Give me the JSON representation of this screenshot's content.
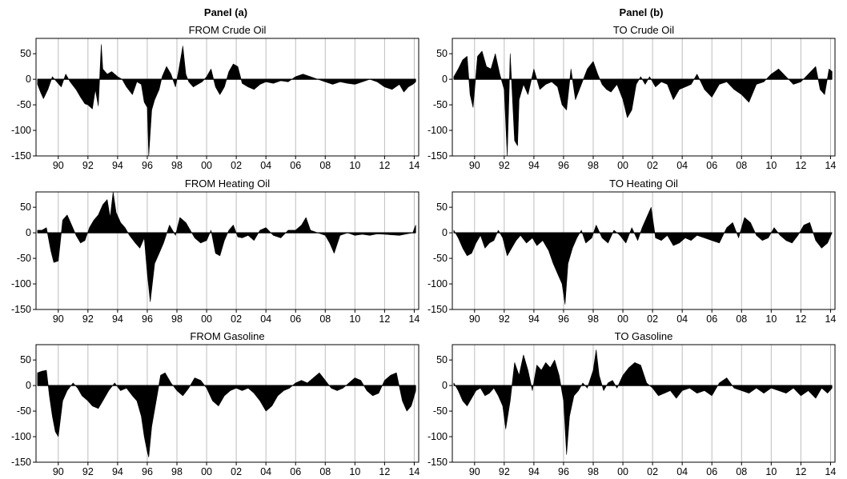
{
  "panels": {
    "left_heading": "Panel (a)",
    "right_heading": "Panel (b)"
  },
  "chart_data": [
    {
      "id": "from-crude-oil",
      "type": "area",
      "title": "FROM Crude Oil",
      "panel": "a",
      "xlim": [
        1988.5,
        2014.3
      ],
      "ylim": [
        -150,
        80
      ],
      "x_ticks": [
        [
          "90",
          1990
        ],
        [
          "92",
          1992
        ],
        [
          "94",
          1994
        ],
        [
          "96",
          1996
        ],
        [
          "98",
          1998
        ],
        [
          "00",
          2000
        ],
        [
          "02",
          2002
        ],
        [
          "04",
          2004
        ],
        [
          "06",
          2006
        ],
        [
          "08",
          2008
        ],
        [
          "10",
          2010
        ],
        [
          "12",
          2012
        ],
        [
          "14",
          2014
        ]
      ],
      "y_ticks": [
        50,
        0,
        -50,
        -100,
        -150
      ],
      "grid": "vertical",
      "x": [
        1988.6,
        1988.8,
        1989.0,
        1989.3,
        1989.6,
        1989.9,
        1990.2,
        1990.5,
        1990.8,
        1991.2,
        1991.5,
        1991.8,
        1992.0,
        1992.3,
        1992.5,
        1992.7,
        1992.9,
        1993.0,
        1993.3,
        1993.6,
        1994.0,
        1994.3,
        1994.6,
        1995.0,
        1995.3,
        1995.6,
        1995.8,
        1996.0,
        1996.1,
        1996.3,
        1996.5,
        1996.8,
        1997.0,
        1997.3,
        1997.6,
        1997.9,
        1998.1,
        1998.4,
        1998.6,
        1998.8,
        1999.1,
        1999.4,
        1999.7,
        2000.0,
        2000.3,
        2000.6,
        2000.9,
        2001.2,
        2001.5,
        2001.8,
        2002.1,
        2002.4,
        2002.8,
        2003.2,
        2003.6,
        2004.0,
        2004.5,
        2005.0,
        2005.5,
        2006.0,
        2006.5,
        2007.0,
        2007.5,
        2008.0,
        2008.5,
        2009.0,
        2009.5,
        2010.0,
        2010.5,
        2011.0,
        2011.5,
        2012.0,
        2012.5,
        2013.0,
        2013.3,
        2013.6,
        2013.9,
        2014.1
      ],
      "y": [
        -10,
        -25,
        -38,
        -20,
        5,
        -5,
        -15,
        10,
        -5,
        -20,
        -35,
        -48,
        -50,
        -58,
        -20,
        -52,
        68,
        20,
        10,
        15,
        5,
        0,
        -15,
        -30,
        -5,
        -10,
        -45,
        -55,
        -150,
        -60,
        -40,
        -20,
        5,
        25,
        10,
        -15,
        15,
        65,
        10,
        -5,
        -15,
        -10,
        -5,
        5,
        20,
        -15,
        -30,
        -15,
        15,
        30,
        25,
        -8,
        -15,
        -20,
        -10,
        -5,
        -8,
        -3,
        -5,
        5,
        10,
        5,
        0,
        -5,
        -10,
        -5,
        -8,
        -10,
        -5,
        0,
        -5,
        -15,
        -20,
        -10,
        -25,
        -15,
        -10,
        -5
      ]
    },
    {
      "id": "to-crude-oil",
      "type": "area",
      "title": "TO Crude Oil",
      "panel": "b",
      "xlim": [
        1988.5,
        2014.3
      ],
      "ylim": [
        -150,
        80
      ],
      "x_ticks": [
        [
          "90",
          1990
        ],
        [
          "92",
          1992
        ],
        [
          "94",
          1994
        ],
        [
          "96",
          1996
        ],
        [
          "98",
          1998
        ],
        [
          "00",
          2000
        ],
        [
          "02",
          2002
        ],
        [
          "04",
          2004
        ],
        [
          "06",
          2006
        ],
        [
          "08",
          2008
        ],
        [
          "10",
          2010
        ],
        [
          "12",
          2012
        ],
        [
          "14",
          2014
        ]
      ],
      "y_ticks": [
        50,
        0,
        -50,
        -100,
        -150
      ],
      "grid": "vertical",
      "x": [
        1988.6,
        1988.9,
        1989.2,
        1989.5,
        1989.7,
        1989.9,
        1990.2,
        1990.5,
        1990.8,
        1991.1,
        1991.4,
        1991.7,
        1992.0,
        1992.2,
        1992.4,
        1992.7,
        1992.9,
        1993.0,
        1993.3,
        1993.6,
        1994.0,
        1994.4,
        1994.8,
        1995.2,
        1995.6,
        1995.9,
        1996.2,
        1996.5,
        1996.8,
        1997.2,
        1997.6,
        1998.0,
        1998.3,
        1998.6,
        1998.9,
        1999.2,
        1999.6,
        2000.0,
        2000.3,
        2000.6,
        2000.9,
        2001.2,
        2001.5,
        2001.8,
        2002.2,
        2002.6,
        2003.0,
        2003.4,
        2003.8,
        2004.2,
        2004.6,
        2005.0,
        2005.5,
        2006.0,
        2006.5,
        2007.0,
        2007.5,
        2008.0,
        2008.5,
        2009.0,
        2009.5,
        2010.0,
        2010.5,
        2011.0,
        2011.5,
        2012.0,
        2012.5,
        2013.0,
        2013.3,
        2013.6,
        2013.9,
        2014.1
      ],
      "y": [
        5,
        20,
        38,
        45,
        -30,
        -55,
        45,
        55,
        25,
        20,
        50,
        10,
        -20,
        -150,
        50,
        -120,
        -130,
        -40,
        -10,
        -30,
        20,
        -20,
        -10,
        -5,
        -15,
        -50,
        -60,
        20,
        -40,
        -10,
        20,
        35,
        10,
        -10,
        -20,
        -25,
        -10,
        -40,
        -75,
        -60,
        -10,
        5,
        -10,
        5,
        -15,
        -5,
        -10,
        -40,
        -20,
        -15,
        -10,
        10,
        -20,
        -35,
        -10,
        -5,
        -20,
        -30,
        -45,
        -10,
        -5,
        10,
        20,
        5,
        -10,
        -5,
        10,
        25,
        -20,
        -30,
        20,
        15
      ]
    },
    {
      "id": "from-heating-oil",
      "type": "area",
      "title": "FROM Heating Oil",
      "panel": "a",
      "xlim": [
        1988.5,
        2014.3
      ],
      "ylim": [
        -150,
        80
      ],
      "x_ticks": [
        [
          "90",
          1990
        ],
        [
          "92",
          1992
        ],
        [
          "94",
          1994
        ],
        [
          "96",
          1996
        ],
        [
          "98",
          1998
        ],
        [
          "00",
          2000
        ],
        [
          "02",
          2002
        ],
        [
          "04",
          2004
        ],
        [
          "06",
          2006
        ],
        [
          "08",
          2008
        ],
        [
          "10",
          2010
        ],
        [
          "12",
          2012
        ],
        [
          "14",
          2014
        ]
      ],
      "y_ticks": [
        50,
        0,
        -50,
        -100,
        -150
      ],
      "grid": "vertical",
      "x": [
        1988.6,
        1988.9,
        1989.2,
        1989.5,
        1989.7,
        1990.0,
        1990.3,
        1990.6,
        1990.9,
        1991.2,
        1991.5,
        1991.8,
        1992.1,
        1992.4,
        1992.7,
        1993.0,
        1993.3,
        1993.5,
        1993.7,
        1993.9,
        1994.2,
        1994.5,
        1994.8,
        1995.2,
        1995.5,
        1995.8,
        1996.0,
        1996.2,
        1996.5,
        1996.8,
        1997.1,
        1997.5,
        1997.9,
        1998.2,
        1998.6,
        1998.9,
        1999.2,
        1999.6,
        2000.0,
        2000.3,
        2000.6,
        2000.9,
        2001.2,
        2001.5,
        2001.8,
        2002.1,
        2002.4,
        2002.8,
        2003.2,
        2003.6,
        2004.0,
        2004.5,
        2005.0,
        2005.5,
        2006.0,
        2006.4,
        2006.7,
        2007.0,
        2007.5,
        2008.0,
        2008.3,
        2008.6,
        2009.0,
        2009.5,
        2010.0,
        2010.5,
        2011.0,
        2011.5,
        2012.0,
        2012.5,
        2013.0,
        2013.5,
        2013.9,
        2014.1
      ],
      "y": [
        5,
        5,
        10,
        -35,
        -58,
        -55,
        25,
        35,
        15,
        -5,
        -20,
        -15,
        10,
        25,
        35,
        55,
        65,
        30,
        80,
        40,
        20,
        10,
        -5,
        -20,
        -30,
        -10,
        -80,
        -135,
        -60,
        -40,
        -20,
        15,
        -5,
        30,
        20,
        5,
        -10,
        -20,
        -15,
        5,
        -40,
        -45,
        -15,
        5,
        15,
        -8,
        -10,
        -5,
        -15,
        5,
        10,
        -5,
        -10,
        5,
        5,
        15,
        30,
        5,
        0,
        -5,
        -20,
        -40,
        -5,
        0,
        -5,
        -3,
        -5,
        -2,
        -3,
        -4,
        -5,
        -2,
        0,
        15
      ]
    },
    {
      "id": "to-heating-oil",
      "type": "area",
      "title": "TO Heating Oil",
      "panel": "b",
      "xlim": [
        1988.5,
        2014.3
      ],
      "ylim": [
        -150,
        80
      ],
      "x_ticks": [
        [
          "90",
          1990
        ],
        [
          "92",
          1992
        ],
        [
          "94",
          1994
        ],
        [
          "96",
          1996
        ],
        [
          "98",
          1998
        ],
        [
          "00",
          2000
        ],
        [
          "02",
          2002
        ],
        [
          "04",
          2004
        ],
        [
          "06",
          2006
        ],
        [
          "08",
          2008
        ],
        [
          "10",
          2010
        ],
        [
          "12",
          2012
        ],
        [
          "14",
          2014
        ]
      ],
      "y_ticks": [
        50,
        0,
        -50,
        -100,
        -150
      ],
      "grid": "vertical",
      "x": [
        1988.6,
        1988.9,
        1989.2,
        1989.5,
        1989.8,
        1990.1,
        1990.4,
        1990.7,
        1991.0,
        1991.3,
        1991.6,
        1991.9,
        1992.2,
        1992.5,
        1992.8,
        1993.1,
        1993.5,
        1993.9,
        1994.2,
        1994.6,
        1995.0,
        1995.3,
        1995.6,
        1995.9,
        1996.1,
        1996.3,
        1996.6,
        1996.9,
        1997.2,
        1997.5,
        1997.9,
        1998.2,
        1998.6,
        1999.0,
        1999.4,
        1999.8,
        2000.2,
        2000.6,
        2001.0,
        2001.3,
        2001.6,
        2001.9,
        2002.2,
        2002.6,
        2003.0,
        2003.4,
        2003.8,
        2004.2,
        2004.6,
        2005.0,
        2005.5,
        2006.0,
        2006.5,
        2007.0,
        2007.4,
        2007.8,
        2008.2,
        2008.6,
        2009.0,
        2009.4,
        2009.8,
        2010.2,
        2010.6,
        2011.0,
        2011.4,
        2011.8,
        2012.2,
        2012.6,
        2013.0,
        2013.4,
        2013.8,
        2014.1
      ],
      "y": [
        5,
        -10,
        -30,
        -45,
        -40,
        -20,
        -5,
        -30,
        -20,
        -15,
        5,
        -10,
        -45,
        -30,
        -15,
        -5,
        -20,
        -10,
        -25,
        -15,
        -35,
        -60,
        -80,
        -100,
        -140,
        -60,
        -30,
        -10,
        5,
        -20,
        -10,
        15,
        -10,
        -20,
        5,
        -5,
        -20,
        10,
        -15,
        10,
        30,
        50,
        -10,
        -15,
        -5,
        -25,
        -20,
        -10,
        -15,
        -5,
        -10,
        -15,
        -20,
        10,
        20,
        -10,
        30,
        20,
        -5,
        -15,
        -10,
        10,
        -5,
        -15,
        -20,
        -5,
        15,
        20,
        -15,
        -30,
        -20,
        0
      ]
    },
    {
      "id": "from-gasoline",
      "type": "area",
      "title": "FROM Gasoline",
      "panel": "a",
      "xlim": [
        1988.5,
        2014.3
      ],
      "ylim": [
        -150,
        80
      ],
      "x_ticks": [
        [
          "90",
          1990
        ],
        [
          "92",
          1992
        ],
        [
          "94",
          1994
        ],
        [
          "96",
          1996
        ],
        [
          "98",
          1998
        ],
        [
          "00",
          2000
        ],
        [
          "02",
          2002
        ],
        [
          "04",
          2004
        ],
        [
          "06",
          2006
        ],
        [
          "08",
          2008
        ],
        [
          "10",
          2010
        ],
        [
          "12",
          2012
        ],
        [
          "14",
          2014
        ]
      ],
      "y_ticks": [
        50,
        0,
        -50,
        -100,
        -150
      ],
      "grid": "vertical",
      "x": [
        1988.6,
        1988.9,
        1989.2,
        1989.4,
        1989.6,
        1989.8,
        1990.0,
        1990.3,
        1990.6,
        1991.0,
        1991.3,
        1991.6,
        1992.0,
        1992.3,
        1992.7,
        1993.0,
        1993.4,
        1993.8,
        1994.2,
        1994.6,
        1995.0,
        1995.3,
        1995.6,
        1995.8,
        1996.0,
        1996.1,
        1996.3,
        1996.6,
        1996.9,
        1997.2,
        1997.6,
        1998.0,
        1998.4,
        1998.8,
        1999.2,
        1999.6,
        2000.0,
        2000.4,
        2000.8,
        2001.2,
        2001.6,
        2002.0,
        2002.4,
        2002.8,
        2003.2,
        2003.6,
        2004.0,
        2004.4,
        2004.8,
        2005.2,
        2005.6,
        2006.0,
        2006.4,
        2006.8,
        2007.2,
        2007.6,
        2008.0,
        2008.4,
        2008.8,
        2009.2,
        2009.6,
        2010.0,
        2010.4,
        2010.8,
        2011.2,
        2011.6,
        2012.0,
        2012.4,
        2012.8,
        2013.2,
        2013.5,
        2013.8,
        2014.1
      ],
      "y": [
        25,
        28,
        30,
        -20,
        -60,
        -90,
        -100,
        -30,
        -10,
        5,
        -5,
        -20,
        -30,
        -40,
        -45,
        -30,
        -10,
        5,
        -10,
        -5,
        -20,
        -30,
        -60,
        -100,
        -130,
        -140,
        -80,
        -30,
        20,
        25,
        5,
        -10,
        -20,
        -5,
        15,
        10,
        -5,
        -30,
        -40,
        -20,
        -10,
        -5,
        -10,
        -5,
        -15,
        -30,
        -50,
        -40,
        -20,
        -10,
        -5,
        5,
        10,
        5,
        15,
        25,
        10,
        -5,
        -10,
        -5,
        5,
        15,
        10,
        -10,
        -20,
        -15,
        10,
        20,
        25,
        -30,
        -50,
        -40,
        -10
      ]
    },
    {
      "id": "to-gasoline",
      "type": "area",
      "title": "TO Gasoline",
      "panel": "b",
      "xlim": [
        1988.5,
        2014.3
      ],
      "ylim": [
        -150,
        80
      ],
      "x_ticks": [
        [
          "90",
          1990
        ],
        [
          "92",
          1992
        ],
        [
          "94",
          1994
        ],
        [
          "96",
          1996
        ],
        [
          "98",
          1998
        ],
        [
          "00",
          2000
        ],
        [
          "02",
          2002
        ],
        [
          "04",
          2004
        ],
        [
          "06",
          2006
        ],
        [
          "08",
          2008
        ],
        [
          "10",
          2010
        ],
        [
          "12",
          2012
        ],
        [
          "14",
          2014
        ]
      ],
      "y_ticks": [
        50,
        0,
        -50,
        -100,
        -150
      ],
      "grid": "vertical",
      "x": [
        1988.6,
        1988.9,
        1989.2,
        1989.5,
        1989.8,
        1990.1,
        1990.4,
        1990.7,
        1991.0,
        1991.3,
        1991.6,
        1991.9,
        1992.1,
        1992.4,
        1992.7,
        1993.0,
        1993.3,
        1993.6,
        1993.9,
        1994.2,
        1994.5,
        1994.8,
        1995.1,
        1995.4,
        1995.7,
        1996.0,
        1996.2,
        1996.4,
        1996.7,
        1997.0,
        1997.3,
        1997.6,
        1998.0,
        1998.2,
        1998.4,
        1998.7,
        1999.0,
        1999.3,
        1999.6,
        2000.0,
        2000.4,
        2000.8,
        2001.2,
        2001.6,
        2002.0,
        2002.4,
        2002.8,
        2003.2,
        2003.6,
        2004.0,
        2004.5,
        2005.0,
        2005.5,
        2006.0,
        2006.5,
        2007.0,
        2007.5,
        2008.0,
        2008.5,
        2009.0,
        2009.5,
        2010.0,
        2010.5,
        2011.0,
        2011.5,
        2012.0,
        2012.5,
        2013.0,
        2013.4,
        2013.8,
        2014.1
      ],
      "y": [
        5,
        -10,
        -30,
        -40,
        -25,
        -10,
        -5,
        -20,
        -15,
        -5,
        -20,
        -40,
        -85,
        -30,
        45,
        20,
        60,
        30,
        -10,
        40,
        30,
        45,
        35,
        50,
        20,
        -30,
        -135,
        -60,
        -20,
        -10,
        5,
        -5,
        30,
        70,
        20,
        -10,
        5,
        10,
        -5,
        20,
        35,
        45,
        40,
        5,
        -5,
        -20,
        -15,
        -10,
        -25,
        -10,
        -5,
        -15,
        -10,
        -20,
        5,
        15,
        -5,
        -10,
        -15,
        -5,
        -15,
        -5,
        -10,
        -15,
        -5,
        -20,
        -10,
        -25,
        -5,
        -15,
        -5
      ]
    }
  ]
}
